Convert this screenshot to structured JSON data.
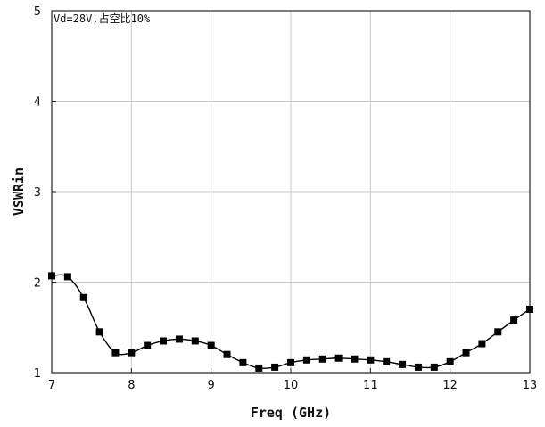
{
  "chart_data": {
    "type": "line",
    "title": "",
    "annotation": "Vd=28V,占空比10%",
    "xlabel": "Freq (GHz)",
    "ylabel": "VSWRin",
    "xlim": [
      7,
      13
    ],
    "ylim": [
      1,
      5
    ],
    "x_ticks": [
      "7",
      "8",
      "9",
      "10",
      "11",
      "12",
      "13"
    ],
    "y_ticks": [
      "1",
      "2",
      "3",
      "4",
      "5"
    ],
    "grid": true,
    "legend": "none",
    "series": [
      {
        "marker": "square",
        "color": "#000000",
        "x": [
          7.0,
          7.2,
          7.4,
          7.6,
          7.8,
          8.0,
          8.2,
          8.4,
          8.6,
          8.8,
          9.0,
          9.2,
          9.4,
          9.6,
          9.8,
          10.0,
          10.2,
          10.4,
          10.6,
          10.8,
          11.0,
          11.2,
          11.4,
          11.6,
          11.8,
          12.0,
          12.2,
          12.4,
          12.6,
          12.8,
          13.0
        ],
        "y": [
          2.07,
          2.06,
          1.83,
          1.45,
          1.22,
          1.22,
          1.3,
          1.35,
          1.37,
          1.35,
          1.3,
          1.2,
          1.11,
          1.05,
          1.06,
          1.11,
          1.14,
          1.15,
          1.16,
          1.15,
          1.14,
          1.12,
          1.09,
          1.06,
          1.06,
          1.12,
          1.22,
          1.32,
          1.45,
          1.58,
          1.7
        ]
      }
    ]
  }
}
